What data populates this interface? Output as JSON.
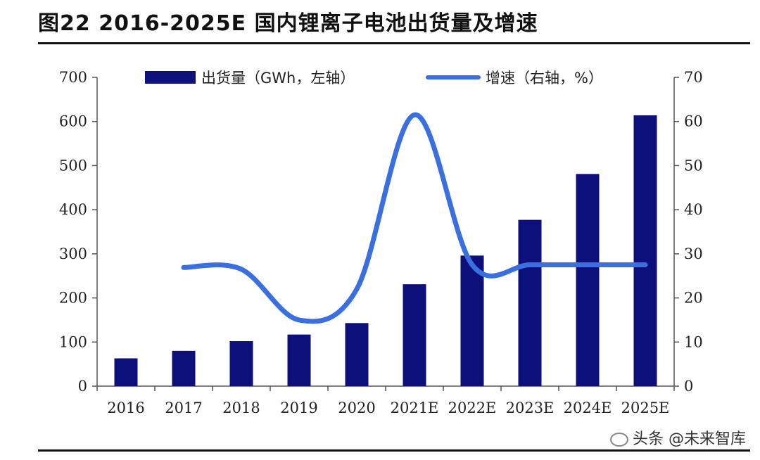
{
  "figure": {
    "title": "图22 2016-2025E 国内锂离子电池出货量及增速",
    "watermark": "头条 @未来智库"
  },
  "colors": {
    "bar": "#0d0f7a",
    "line": "#3a6fe0",
    "axis": "#555555"
  },
  "chart_data": {
    "type": "bar",
    "title": "图22 2016-2025E 国内锂离子电池出货量及增速",
    "categories": [
      "2016",
      "2017",
      "2018",
      "2019",
      "2020",
      "2021E",
      "2022E",
      "2023E",
      "2024E",
      "2025E"
    ],
    "series": [
      {
        "name": "出货量（GWh，左轴）",
        "type": "bar",
        "axis": "left",
        "values": [
          63,
          80,
          102,
          117,
          143,
          231,
          296,
          377,
          481,
          614
        ]
      },
      {
        "name": "增速（右轴，%）",
        "type": "line",
        "axis": "right",
        "values": [
          null,
          26.9,
          26.5,
          15.0,
          22.0,
          61.5,
          27.5,
          27.5,
          27.5,
          27.5
        ]
      }
    ],
    "y_left": {
      "range": [
        0,
        700
      ],
      "ticks": [
        "0",
        "100",
        "200",
        "300",
        "400",
        "500",
        "600",
        "700"
      ]
    },
    "y_right": {
      "range": [
        0,
        70
      ],
      "ticks": [
        "0",
        "10",
        "20",
        "30",
        "40",
        "50",
        "60",
        "70"
      ]
    },
    "legend": {
      "position": "top",
      "items": [
        "出货量（GWh，左轴）",
        "增速（右轴，%）"
      ]
    },
    "grid": false
  }
}
